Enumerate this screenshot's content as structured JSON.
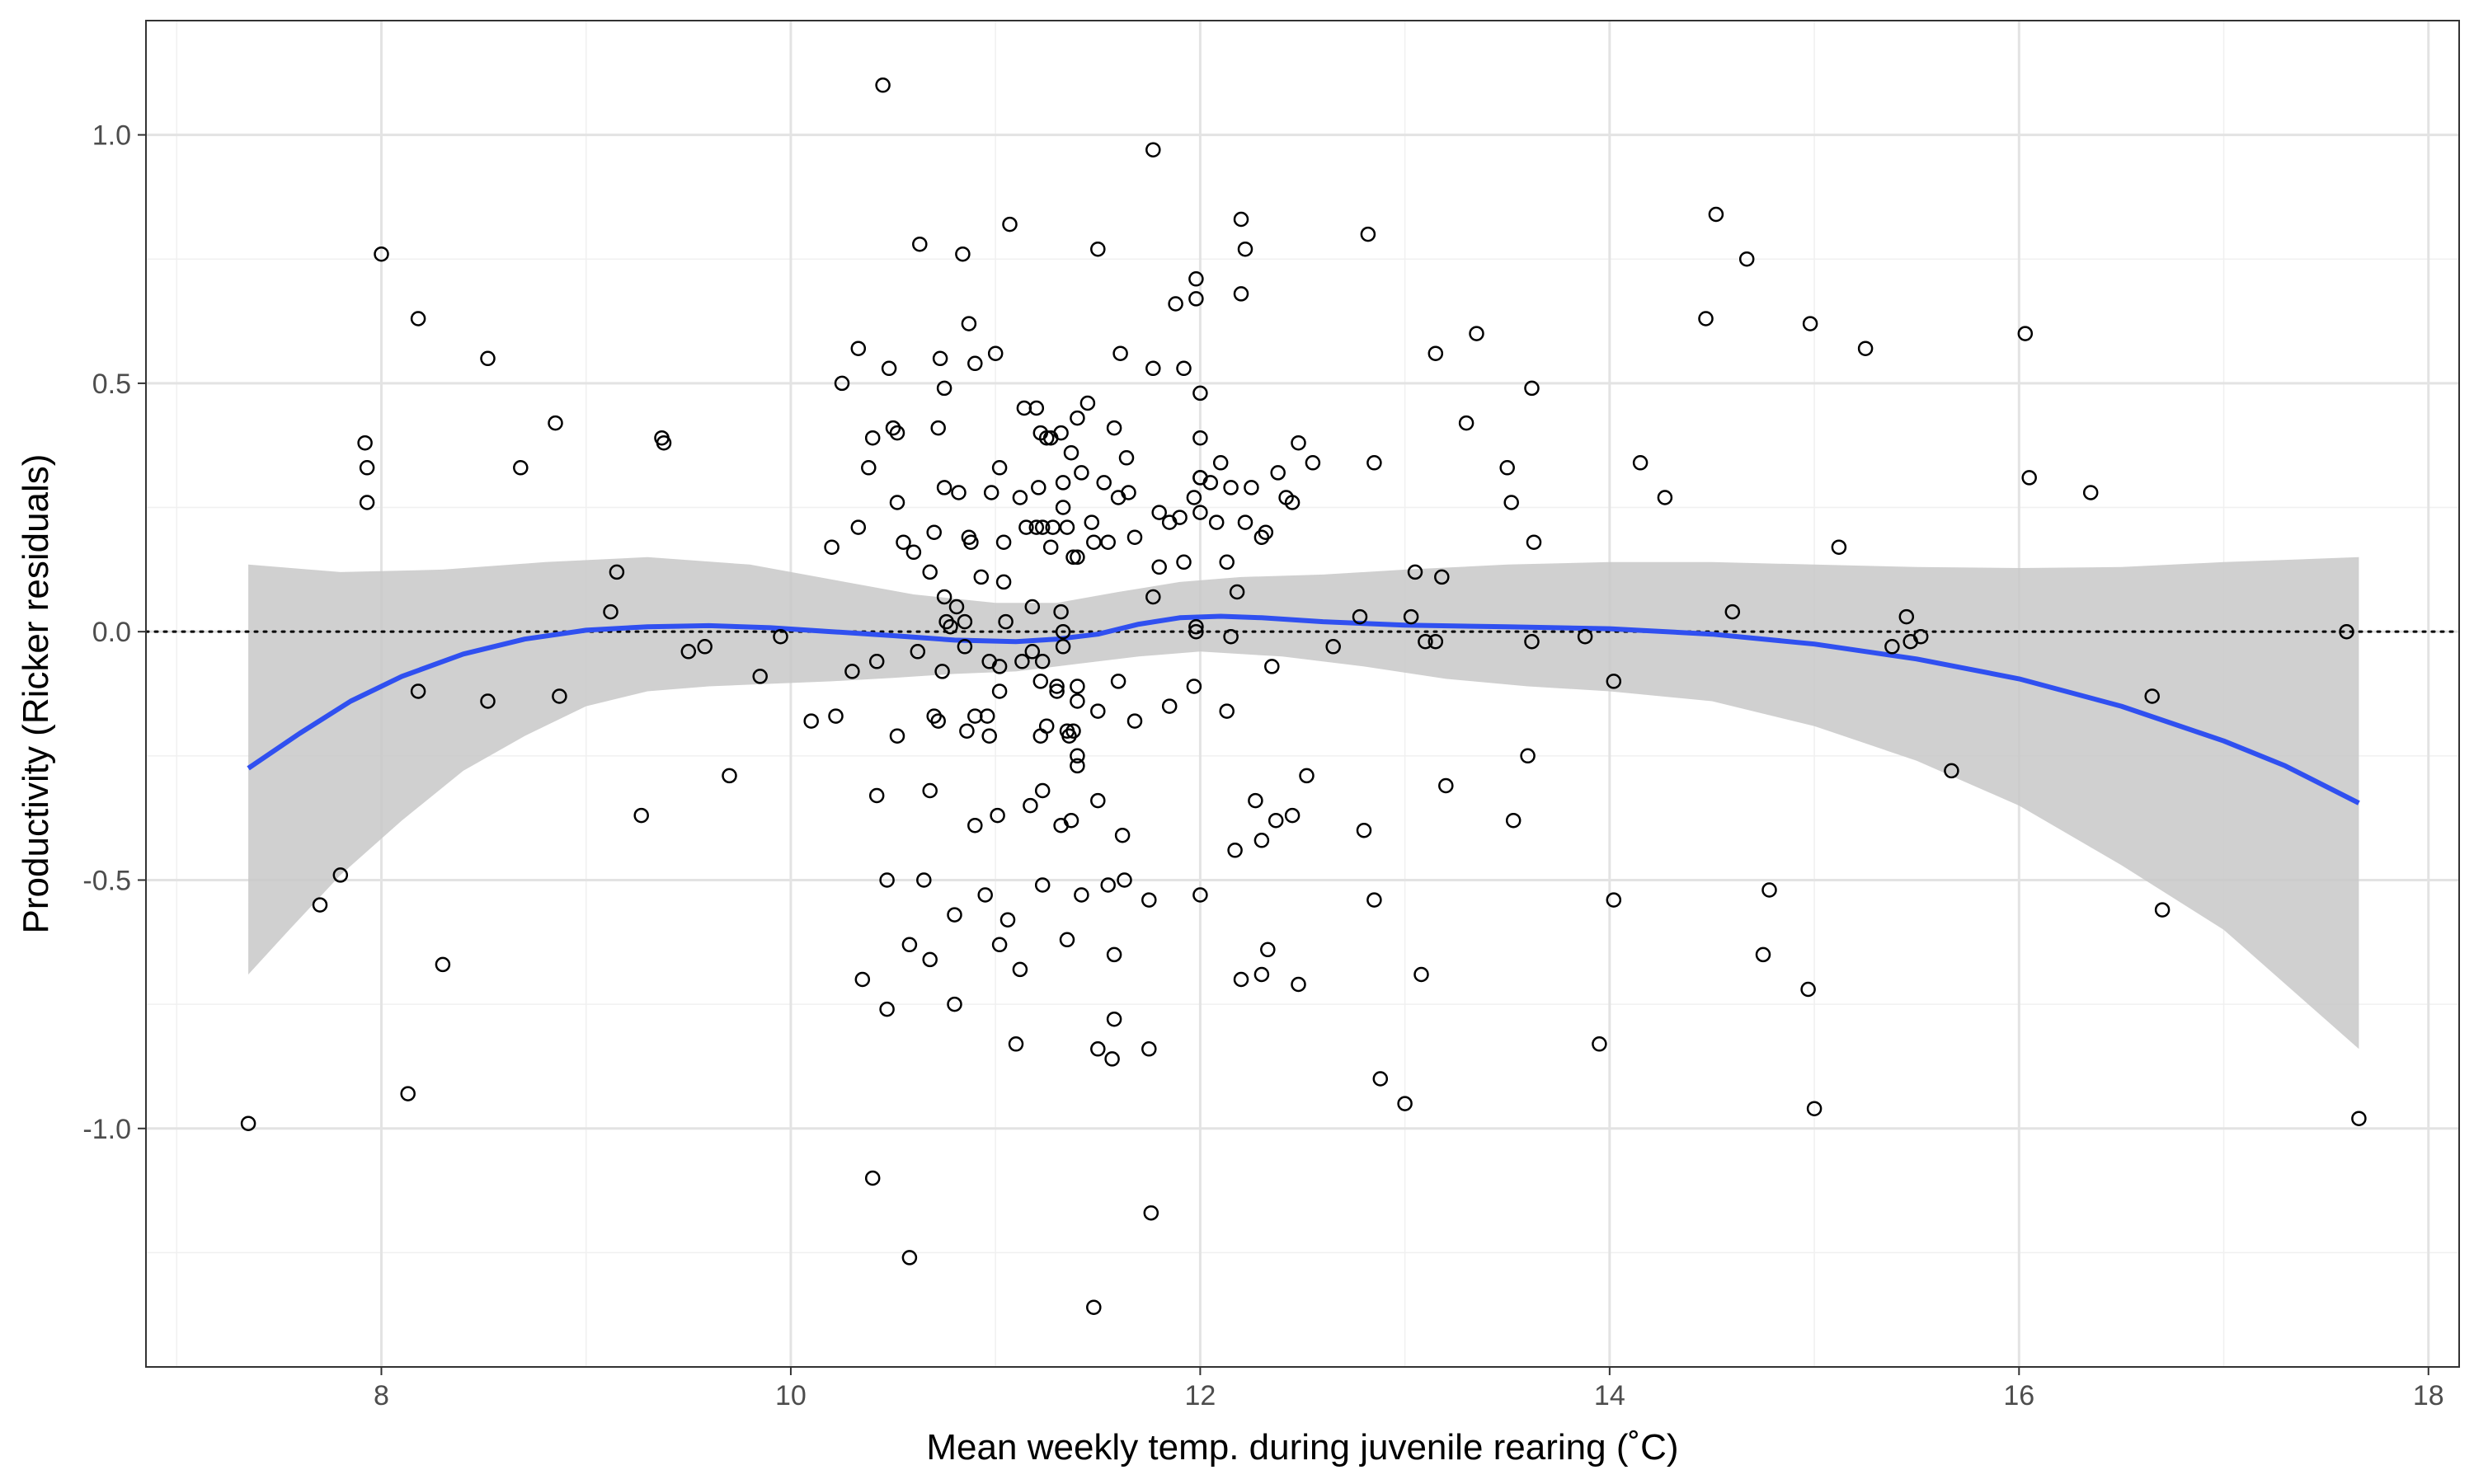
{
  "chart_data": {
    "type": "scatter",
    "title": "",
    "xlabel": "Mean weekly temp. during juvenile rearing (˚C)",
    "ylabel": "Productivity (Ricker residuals)",
    "xlim": [
      6.85,
      18.15
    ],
    "ylim": [
      -1.48,
      1.23
    ],
    "x_ticks": [
      8,
      10,
      12,
      14,
      16,
      18
    ],
    "x_tick_labels": [
      "8",
      "10",
      "12",
      "14",
      "16",
      "18"
    ],
    "y_ticks": [
      -1.0,
      -0.5,
      0.0,
      0.5,
      1.0
    ],
    "y_tick_labels": [
      "-1.0",
      "-0.5",
      "0.0",
      "0.5",
      "1.0"
    ],
    "grid": true,
    "reference_line": {
      "y": 0,
      "style": "dotted",
      "color": "#000000"
    },
    "colors": {
      "points": "#000000",
      "smooth": "#3050f0",
      "ribbon": "#c8c8c8"
    },
    "points": [
      [
        7.35,
        -0.99
      ],
      [
        7.7,
        -0.55
      ],
      [
        7.8,
        -0.49
      ],
      [
        7.92,
        0.38
      ],
      [
        7.93,
        0.33
      ],
      [
        7.93,
        0.26
      ],
      [
        8.0,
        0.76
      ],
      [
        8.13,
        -0.93
      ],
      [
        8.18,
        0.63
      ],
      [
        8.18,
        -0.12
      ],
      [
        8.3,
        -0.67
      ],
      [
        8.52,
        0.55
      ],
      [
        8.52,
        -0.14
      ],
      [
        8.68,
        0.33
      ],
      [
        8.85,
        0.42
      ],
      [
        8.87,
        -0.13
      ],
      [
        9.12,
        0.04
      ],
      [
        9.15,
        0.12
      ],
      [
        9.27,
        -0.37
      ],
      [
        9.37,
        0.39
      ],
      [
        9.38,
        0.38
      ],
      [
        9.5,
        -0.04
      ],
      [
        9.58,
        -0.03
      ],
      [
        9.7,
        -0.29
      ],
      [
        9.85,
        -0.09
      ],
      [
        9.95,
        -0.01
      ],
      [
        10.1,
        -0.18
      ],
      [
        10.2,
        0.17
      ],
      [
        10.22,
        -0.17
      ],
      [
        10.25,
        0.5
      ],
      [
        10.3,
        -0.08
      ],
      [
        10.33,
        0.21
      ],
      [
        10.33,
        0.57
      ],
      [
        10.35,
        -0.7
      ],
      [
        10.38,
        0.33
      ],
      [
        10.4,
        0.39
      ],
      [
        10.4,
        -1.1
      ],
      [
        10.42,
        -0.06
      ],
      [
        10.42,
        -0.33
      ],
      [
        10.45,
        1.1
      ],
      [
        10.47,
        -0.76
      ],
      [
        10.47,
        -0.5
      ],
      [
        10.48,
        0.53
      ],
      [
        10.5,
        0.41
      ],
      [
        10.52,
        0.26
      ],
      [
        10.52,
        0.4
      ],
      [
        10.52,
        -0.21
      ],
      [
        10.55,
        0.18
      ],
      [
        10.58,
        -1.26
      ],
      [
        10.58,
        -0.63
      ],
      [
        10.6,
        0.16
      ],
      [
        10.62,
        -0.04
      ],
      [
        10.63,
        0.78
      ],
      [
        10.65,
        -0.5
      ],
      [
        10.68,
        -0.66
      ],
      [
        10.68,
        0.12
      ],
      [
        10.68,
        -0.32
      ],
      [
        10.7,
        0.2
      ],
      [
        10.7,
        -0.17
      ],
      [
        10.72,
        0.41
      ],
      [
        10.72,
        -0.18
      ],
      [
        10.73,
        0.55
      ],
      [
        10.74,
        -0.08
      ],
      [
        10.75,
        0.49
      ],
      [
        10.75,
        0.29
      ],
      [
        10.75,
        0.07
      ],
      [
        10.76,
        0.02
      ],
      [
        10.78,
        0.01
      ],
      [
        10.8,
        -0.57
      ],
      [
        10.8,
        -0.75
      ],
      [
        10.81,
        0.05
      ],
      [
        10.82,
        0.28
      ],
      [
        10.84,
        0.76
      ],
      [
        10.85,
        0.02
      ],
      [
        10.85,
        -0.03
      ],
      [
        10.86,
        -0.2
      ],
      [
        10.87,
        0.62
      ],
      [
        10.87,
        0.19
      ],
      [
        10.88,
        0.18
      ],
      [
        10.9,
        -0.39
      ],
      [
        10.9,
        0.54
      ],
      [
        10.9,
        -0.17
      ],
      [
        10.93,
        0.11
      ],
      [
        10.95,
        -0.53
      ],
      [
        10.96,
        -0.17
      ],
      [
        10.97,
        -0.21
      ],
      [
        10.97,
        -0.06
      ],
      [
        10.98,
        0.28
      ],
      [
        11.0,
        0.56
      ],
      [
        11.01,
        -0.37
      ],
      [
        11.02,
        -0.63
      ],
      [
        11.02,
        -0.07
      ],
      [
        11.02,
        -0.12
      ],
      [
        11.02,
        0.33
      ],
      [
        11.04,
        0.18
      ],
      [
        11.04,
        0.1
      ],
      [
        11.05,
        0.02
      ],
      [
        11.06,
        -0.58
      ],
      [
        11.07,
        0.82
      ],
      [
        11.1,
        -0.83
      ],
      [
        11.12,
        0.27
      ],
      [
        11.12,
        -0.68
      ],
      [
        11.13,
        -0.06
      ],
      [
        11.14,
        0.45
      ],
      [
        11.15,
        0.21
      ],
      [
        11.17,
        -0.35
      ],
      [
        11.18,
        -0.04
      ],
      [
        11.18,
        0.05
      ],
      [
        11.2,
        0.21
      ],
      [
        11.2,
        0.45
      ],
      [
        11.21,
        0.29
      ],
      [
        11.22,
        -0.1
      ],
      [
        11.22,
        -0.21
      ],
      [
        11.22,
        0.4
      ],
      [
        11.23,
        -0.51
      ],
      [
        11.23,
        -0.32
      ],
      [
        11.23,
        -0.06
      ],
      [
        11.23,
        0.21
      ],
      [
        11.25,
        -0.19
      ],
      [
        11.25,
        0.39
      ],
      [
        11.27,
        0.39
      ],
      [
        11.27,
        0.17
      ],
      [
        11.28,
        0.21
      ],
      [
        11.3,
        -0.11
      ],
      [
        11.3,
        -0.12
      ],
      [
        11.32,
        0.04
      ],
      [
        11.32,
        0.4
      ],
      [
        11.32,
        -0.39
      ],
      [
        11.33,
        0.25
      ],
      [
        11.33,
        0.3
      ],
      [
        11.33,
        -0.03
      ],
      [
        11.33,
        0.0
      ],
      [
        11.35,
        -0.62
      ],
      [
        11.35,
        -0.2
      ],
      [
        11.35,
        0.21
      ],
      [
        11.36,
        -0.21
      ],
      [
        11.37,
        0.36
      ],
      [
        11.37,
        -0.38
      ],
      [
        11.38,
        -0.2
      ],
      [
        11.38,
        0.15
      ],
      [
        11.4,
        0.43
      ],
      [
        11.4,
        0.15
      ],
      [
        11.4,
        -0.11
      ],
      [
        11.4,
        -0.14
      ],
      [
        11.4,
        -0.25
      ],
      [
        11.4,
        -0.27
      ],
      [
        11.42,
        -0.53
      ],
      [
        11.42,
        0.32
      ],
      [
        11.45,
        0.46
      ],
      [
        11.47,
        0.22
      ],
      [
        11.48,
        0.18
      ],
      [
        11.48,
        -1.36
      ],
      [
        11.5,
        0.77
      ],
      [
        11.5,
        -0.84
      ],
      [
        11.5,
        -0.16
      ],
      [
        11.5,
        -0.34
      ],
      [
        11.53,
        0.3
      ],
      [
        11.55,
        0.18
      ],
      [
        11.55,
        -0.51
      ],
      [
        11.57,
        -0.86
      ],
      [
        11.58,
        0.41
      ],
      [
        11.58,
        -0.65
      ],
      [
        11.58,
        -0.78
      ],
      [
        11.6,
        0.27
      ],
      [
        11.6,
        -0.1
      ],
      [
        11.61,
        0.56
      ],
      [
        11.62,
        -0.41
      ],
      [
        11.63,
        -0.5
      ],
      [
        11.64,
        0.35
      ],
      [
        11.65,
        0.28
      ],
      [
        11.68,
        0.19
      ],
      [
        11.68,
        -0.18
      ],
      [
        11.75,
        -0.84
      ],
      [
        11.75,
        -0.54
      ],
      [
        11.76,
        -1.17
      ],
      [
        11.77,
        0.97
      ],
      [
        11.77,
        0.53
      ],
      [
        11.77,
        0.07
      ],
      [
        11.8,
        0.24
      ],
      [
        11.8,
        0.13
      ],
      [
        11.85,
        -0.15
      ],
      [
        11.85,
        0.22
      ],
      [
        11.88,
        0.66
      ],
      [
        11.9,
        0.23
      ],
      [
        11.92,
        0.53
      ],
      [
        11.92,
        0.14
      ],
      [
        11.97,
        -0.11
      ],
      [
        11.97,
        0.27
      ],
      [
        11.98,
        0.01
      ],
      [
        11.98,
        0.0
      ],
      [
        11.98,
        0.71
      ],
      [
        11.98,
        0.67
      ],
      [
        12.0,
        -0.53
      ],
      [
        12.0,
        0.31
      ],
      [
        12.0,
        0.31
      ],
      [
        12.0,
        0.24
      ],
      [
        12.0,
        0.48
      ],
      [
        12.0,
        0.39
      ],
      [
        12.05,
        0.3
      ],
      [
        12.08,
        0.22
      ],
      [
        12.1,
        0.34
      ],
      [
        12.13,
        0.14
      ],
      [
        12.13,
        -0.16
      ],
      [
        12.15,
        -0.01
      ],
      [
        12.15,
        0.29
      ],
      [
        12.17,
        -0.44
      ],
      [
        12.18,
        0.08
      ],
      [
        12.2,
        0.83
      ],
      [
        12.2,
        0.68
      ],
      [
        12.2,
        -0.7
      ],
      [
        12.22,
        0.22
      ],
      [
        12.22,
        0.77
      ],
      [
        12.25,
        0.29
      ],
      [
        12.27,
        -0.34
      ],
      [
        12.3,
        -0.42
      ],
      [
        12.3,
        0.19
      ],
      [
        12.3,
        -0.69
      ],
      [
        12.32,
        0.2
      ],
      [
        12.33,
        -0.64
      ],
      [
        12.35,
        -0.07
      ],
      [
        12.37,
        -0.38
      ],
      [
        12.38,
        0.32
      ],
      [
        12.42,
        0.27
      ],
      [
        12.45,
        -0.37
      ],
      [
        12.45,
        0.26
      ],
      [
        12.48,
        0.38
      ],
      [
        12.48,
        -0.71
      ],
      [
        12.52,
        -0.29
      ],
      [
        12.55,
        0.34
      ],
      [
        12.65,
        -0.03
      ],
      [
        12.78,
        0.03
      ],
      [
        12.8,
        -0.4
      ],
      [
        12.82,
        0.8
      ],
      [
        12.85,
        -0.54
      ],
      [
        12.85,
        0.34
      ],
      [
        12.88,
        -0.9
      ],
      [
        13.0,
        -0.95
      ],
      [
        13.03,
        0.03
      ],
      [
        13.05,
        0.12
      ],
      [
        13.08,
        -0.69
      ],
      [
        13.1,
        -0.02
      ],
      [
        13.15,
        0.56
      ],
      [
        13.15,
        -0.02
      ],
      [
        13.18,
        0.11
      ],
      [
        13.2,
        -0.31
      ],
      [
        13.3,
        0.42
      ],
      [
        13.35,
        0.6
      ],
      [
        13.5,
        0.33
      ],
      [
        13.52,
        0.26
      ],
      [
        13.53,
        -0.38
      ],
      [
        13.6,
        -0.25
      ],
      [
        13.62,
        0.49
      ],
      [
        13.62,
        -0.02
      ],
      [
        13.63,
        0.18
      ],
      [
        13.88,
        -0.01
      ],
      [
        13.95,
        -0.83
      ],
      [
        14.02,
        -0.1
      ],
      [
        14.02,
        -0.54
      ],
      [
        14.15,
        0.34
      ],
      [
        14.27,
        0.27
      ],
      [
        14.47,
        0.63
      ],
      [
        14.52,
        0.84
      ],
      [
        14.6,
        0.04
      ],
      [
        14.67,
        0.75
      ],
      [
        14.75,
        -0.65
      ],
      [
        14.78,
        -0.52
      ],
      [
        14.97,
        -0.72
      ],
      [
        14.98,
        0.62
      ],
      [
        15.0,
        -0.96
      ],
      [
        15.12,
        0.17
      ],
      [
        15.25,
        0.57
      ],
      [
        15.38,
        -0.03
      ],
      [
        15.45,
        0.03
      ],
      [
        15.47,
        -0.02
      ],
      [
        15.52,
        -0.01
      ],
      [
        15.67,
        -0.28
      ],
      [
        16.03,
        0.6
      ],
      [
        16.05,
        0.31
      ],
      [
        16.35,
        0.28
      ],
      [
        16.65,
        -0.13
      ],
      [
        16.7,
        -0.56
      ],
      [
        17.6,
        0.0
      ],
      [
        17.66,
        -0.98
      ]
    ],
    "smooth_line": [
      [
        7.35,
        -0.275
      ],
      [
        7.6,
        -0.205
      ],
      [
        7.85,
        -0.14
      ],
      [
        8.1,
        -0.09
      ],
      [
        8.4,
        -0.045
      ],
      [
        8.7,
        -0.015
      ],
      [
        9.0,
        0.003
      ],
      [
        9.3,
        0.01
      ],
      [
        9.6,
        0.012
      ],
      [
        9.9,
        0.008
      ],
      [
        10.2,
        0.0
      ],
      [
        10.5,
        -0.008
      ],
      [
        10.8,
        -0.017
      ],
      [
        11.1,
        -0.02
      ],
      [
        11.3,
        -0.015
      ],
      [
        11.5,
        -0.005
      ],
      [
        11.7,
        0.015
      ],
      [
        11.9,
        0.028
      ],
      [
        12.1,
        0.031
      ],
      [
        12.3,
        0.028
      ],
      [
        12.6,
        0.02
      ],
      [
        13.0,
        0.013
      ],
      [
        13.5,
        0.01
      ],
      [
        14.0,
        0.006
      ],
      [
        14.5,
        -0.005
      ],
      [
        15.0,
        -0.025
      ],
      [
        15.5,
        -0.055
      ],
      [
        16.0,
        -0.095
      ],
      [
        16.5,
        -0.15
      ],
      [
        17.0,
        -0.22
      ],
      [
        17.3,
        -0.27
      ],
      [
        17.66,
        -0.345
      ]
    ],
    "ribbon_upper": [
      [
        7.35,
        0.135
      ],
      [
        7.8,
        0.12
      ],
      [
        8.3,
        0.125
      ],
      [
        8.8,
        0.14
      ],
      [
        9.3,
        0.15
      ],
      [
        9.8,
        0.135
      ],
      [
        10.2,
        0.105
      ],
      [
        10.6,
        0.075
      ],
      [
        11.0,
        0.058
      ],
      [
        11.3,
        0.058
      ],
      [
        11.6,
        0.08
      ],
      [
        11.9,
        0.1
      ],
      [
        12.2,
        0.11
      ],
      [
        12.6,
        0.115
      ],
      [
        13.0,
        0.125
      ],
      [
        13.5,
        0.135
      ],
      [
        14.0,
        0.14
      ],
      [
        14.5,
        0.14
      ],
      [
        15.0,
        0.135
      ],
      [
        15.5,
        0.13
      ],
      [
        16.0,
        0.128
      ],
      [
        16.5,
        0.13
      ],
      [
        17.0,
        0.14
      ],
      [
        17.66,
        0.15
      ]
    ],
    "ribbon_lower": [
      [
        7.35,
        -0.69
      ],
      [
        7.55,
        -0.6
      ],
      [
        7.8,
        -0.49
      ],
      [
        8.1,
        -0.38
      ],
      [
        8.4,
        -0.28
      ],
      [
        8.7,
        -0.21
      ],
      [
        9.0,
        -0.15
      ],
      [
        9.3,
        -0.12
      ],
      [
        9.6,
        -0.11
      ],
      [
        9.9,
        -0.105
      ],
      [
        10.2,
        -0.1
      ],
      [
        10.5,
        -0.093
      ],
      [
        10.8,
        -0.085
      ],
      [
        11.1,
        -0.08
      ],
      [
        11.4,
        -0.065
      ],
      [
        11.7,
        -0.05
      ],
      [
        12.0,
        -0.04
      ],
      [
        12.4,
        -0.05
      ],
      [
        12.8,
        -0.07
      ],
      [
        13.2,
        -0.095
      ],
      [
        13.6,
        -0.11
      ],
      [
        14.0,
        -0.12
      ],
      [
        14.5,
        -0.14
      ],
      [
        15.0,
        -0.19
      ],
      [
        15.5,
        -0.26
      ],
      [
        16.0,
        -0.35
      ],
      [
        16.5,
        -0.47
      ],
      [
        17.0,
        -0.6
      ],
      [
        17.66,
        -0.84
      ]
    ]
  }
}
